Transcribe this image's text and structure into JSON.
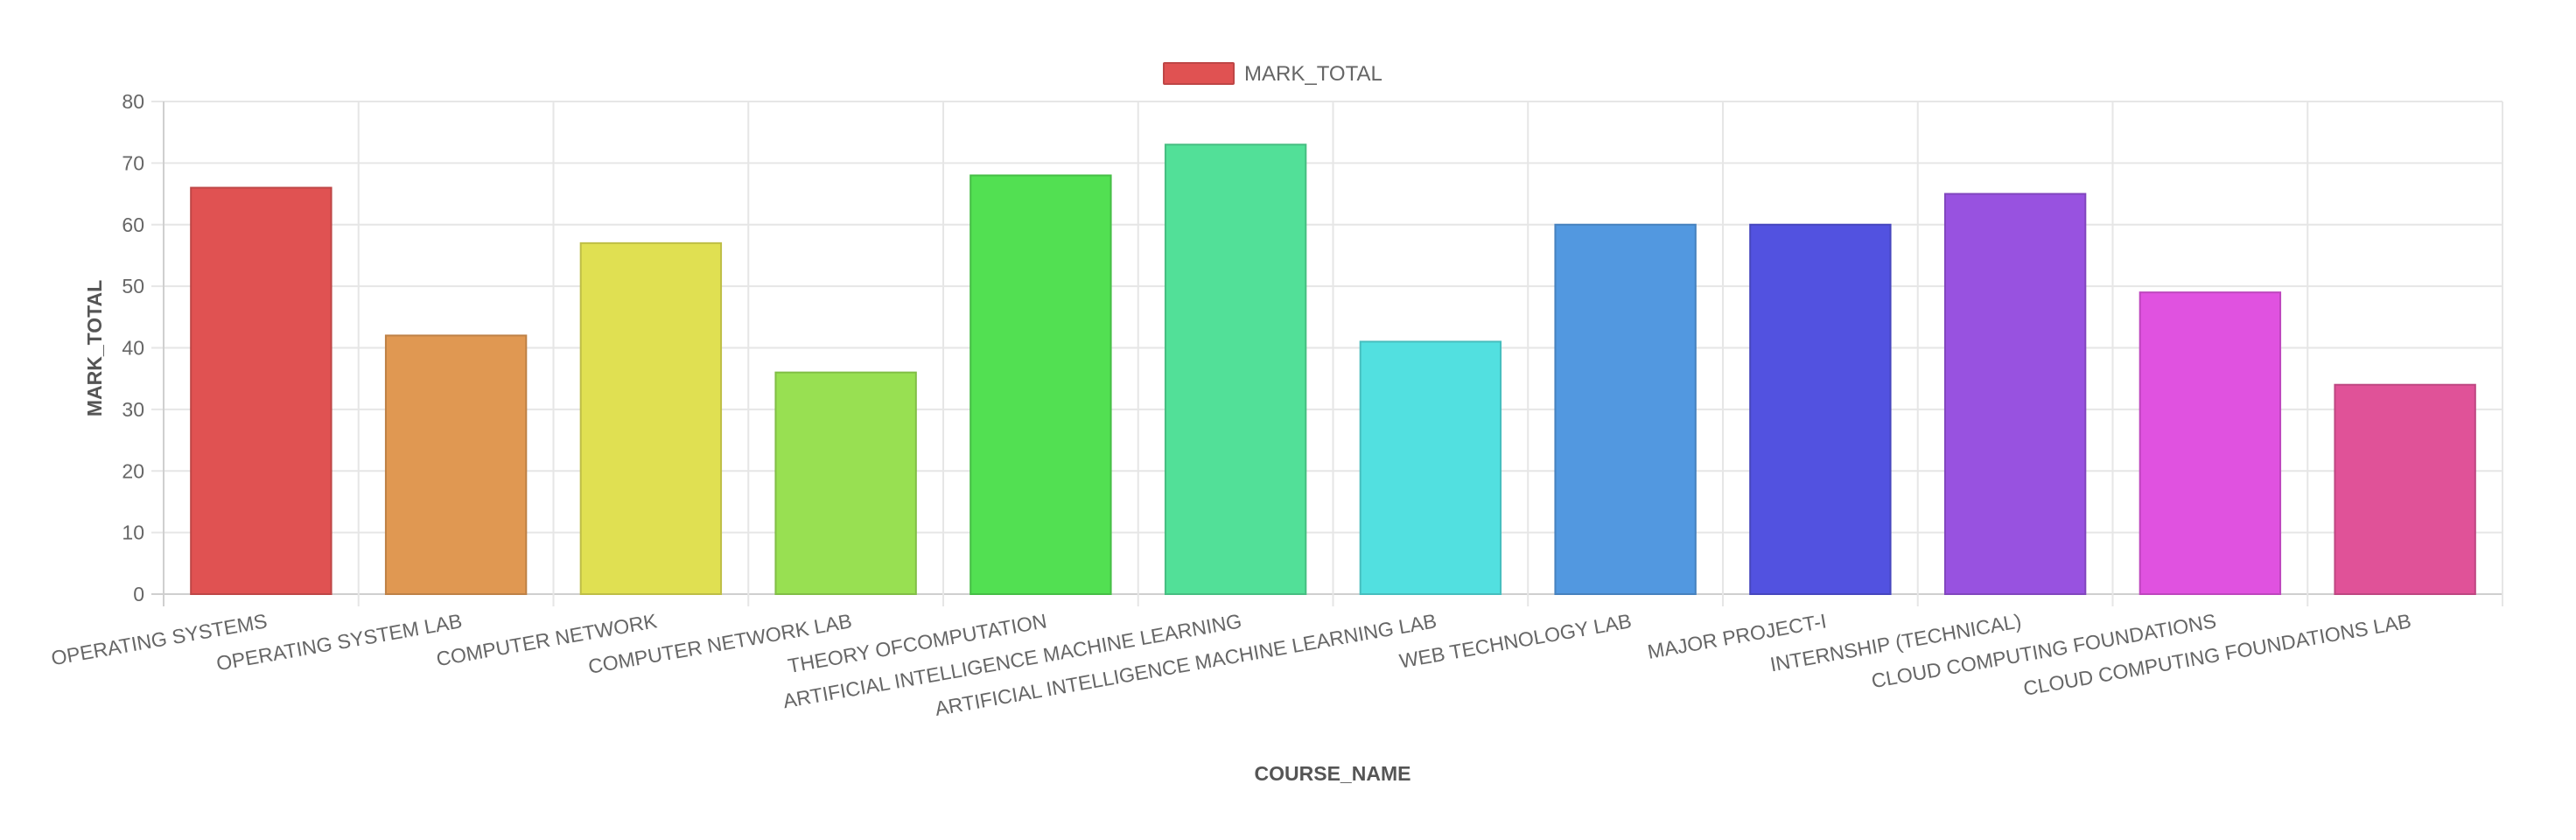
{
  "chart_data": {
    "type": "bar",
    "categories": [
      "OPERATING SYSTEMS",
      "OPERATING SYSTEM LAB",
      "COMPUTER NETWORK",
      "COMPUTER NETWORK LAB",
      "THEORY OFCOMPUTATION",
      "ARTIFICIAL INTELLIGENCE MACHINE LEARNING",
      "ARTIFICIAL INTELLIGENCE MACHINE LEARNING LAB",
      "WEB TECHNOLOGY LAB",
      "MAJOR PROJECT-I",
      "INTERNSHIP (TECHNICAL)",
      "CLOUD COMPUTING FOUNDATIONS",
      "CLOUD COMPUTING FOUNDATIONS LAB"
    ],
    "series": [
      {
        "name": "MARK_TOTAL",
        "values": [
          66,
          42,
          57,
          36,
          68,
          73,
          41,
          60,
          60,
          65,
          49,
          34
        ]
      }
    ],
    "colors": [
      "#e05252",
      "#e09852",
      "#e0e052",
      "#98e052",
      "#52e052",
      "#52e098",
      "#52e0e0",
      "#5298e0",
      "#5252e0",
      "#9852e0",
      "#e052e0",
      "#e05298"
    ],
    "legend_color": "#e05252",
    "xlabel": "COURSE_NAME",
    "ylabel": "MARK_TOTAL",
    "ylim": [
      0,
      80
    ],
    "yticks": [
      "0",
      "10",
      "20",
      "30",
      "40",
      "50",
      "60",
      "70",
      "80"
    ],
    "grid": true,
    "legend_position": "top-center"
  }
}
